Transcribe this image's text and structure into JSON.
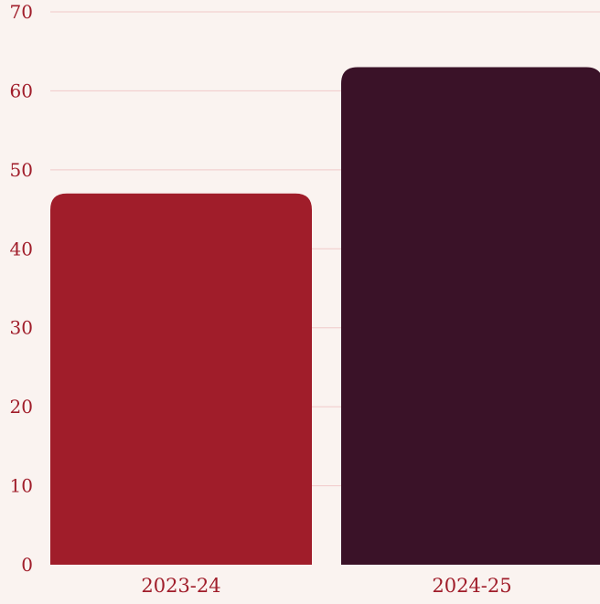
{
  "colors": {
    "background": "#faf3f0",
    "grid": "#f0c9c9",
    "tick_text": "#a01d2a",
    "bar_1": "#a01d2a",
    "bar_2": "#3a1228"
  },
  "chart_data": {
    "type": "bar",
    "categories": [
      "2023-24",
      "2024-25"
    ],
    "values": [
      47,
      63
    ],
    "title": "",
    "xlabel": "",
    "ylabel": "",
    "ylim": [
      0,
      70
    ],
    "yticks": [
      0,
      10,
      20,
      30,
      40,
      50,
      60,
      70
    ],
    "grid": true,
    "legend": "none"
  }
}
